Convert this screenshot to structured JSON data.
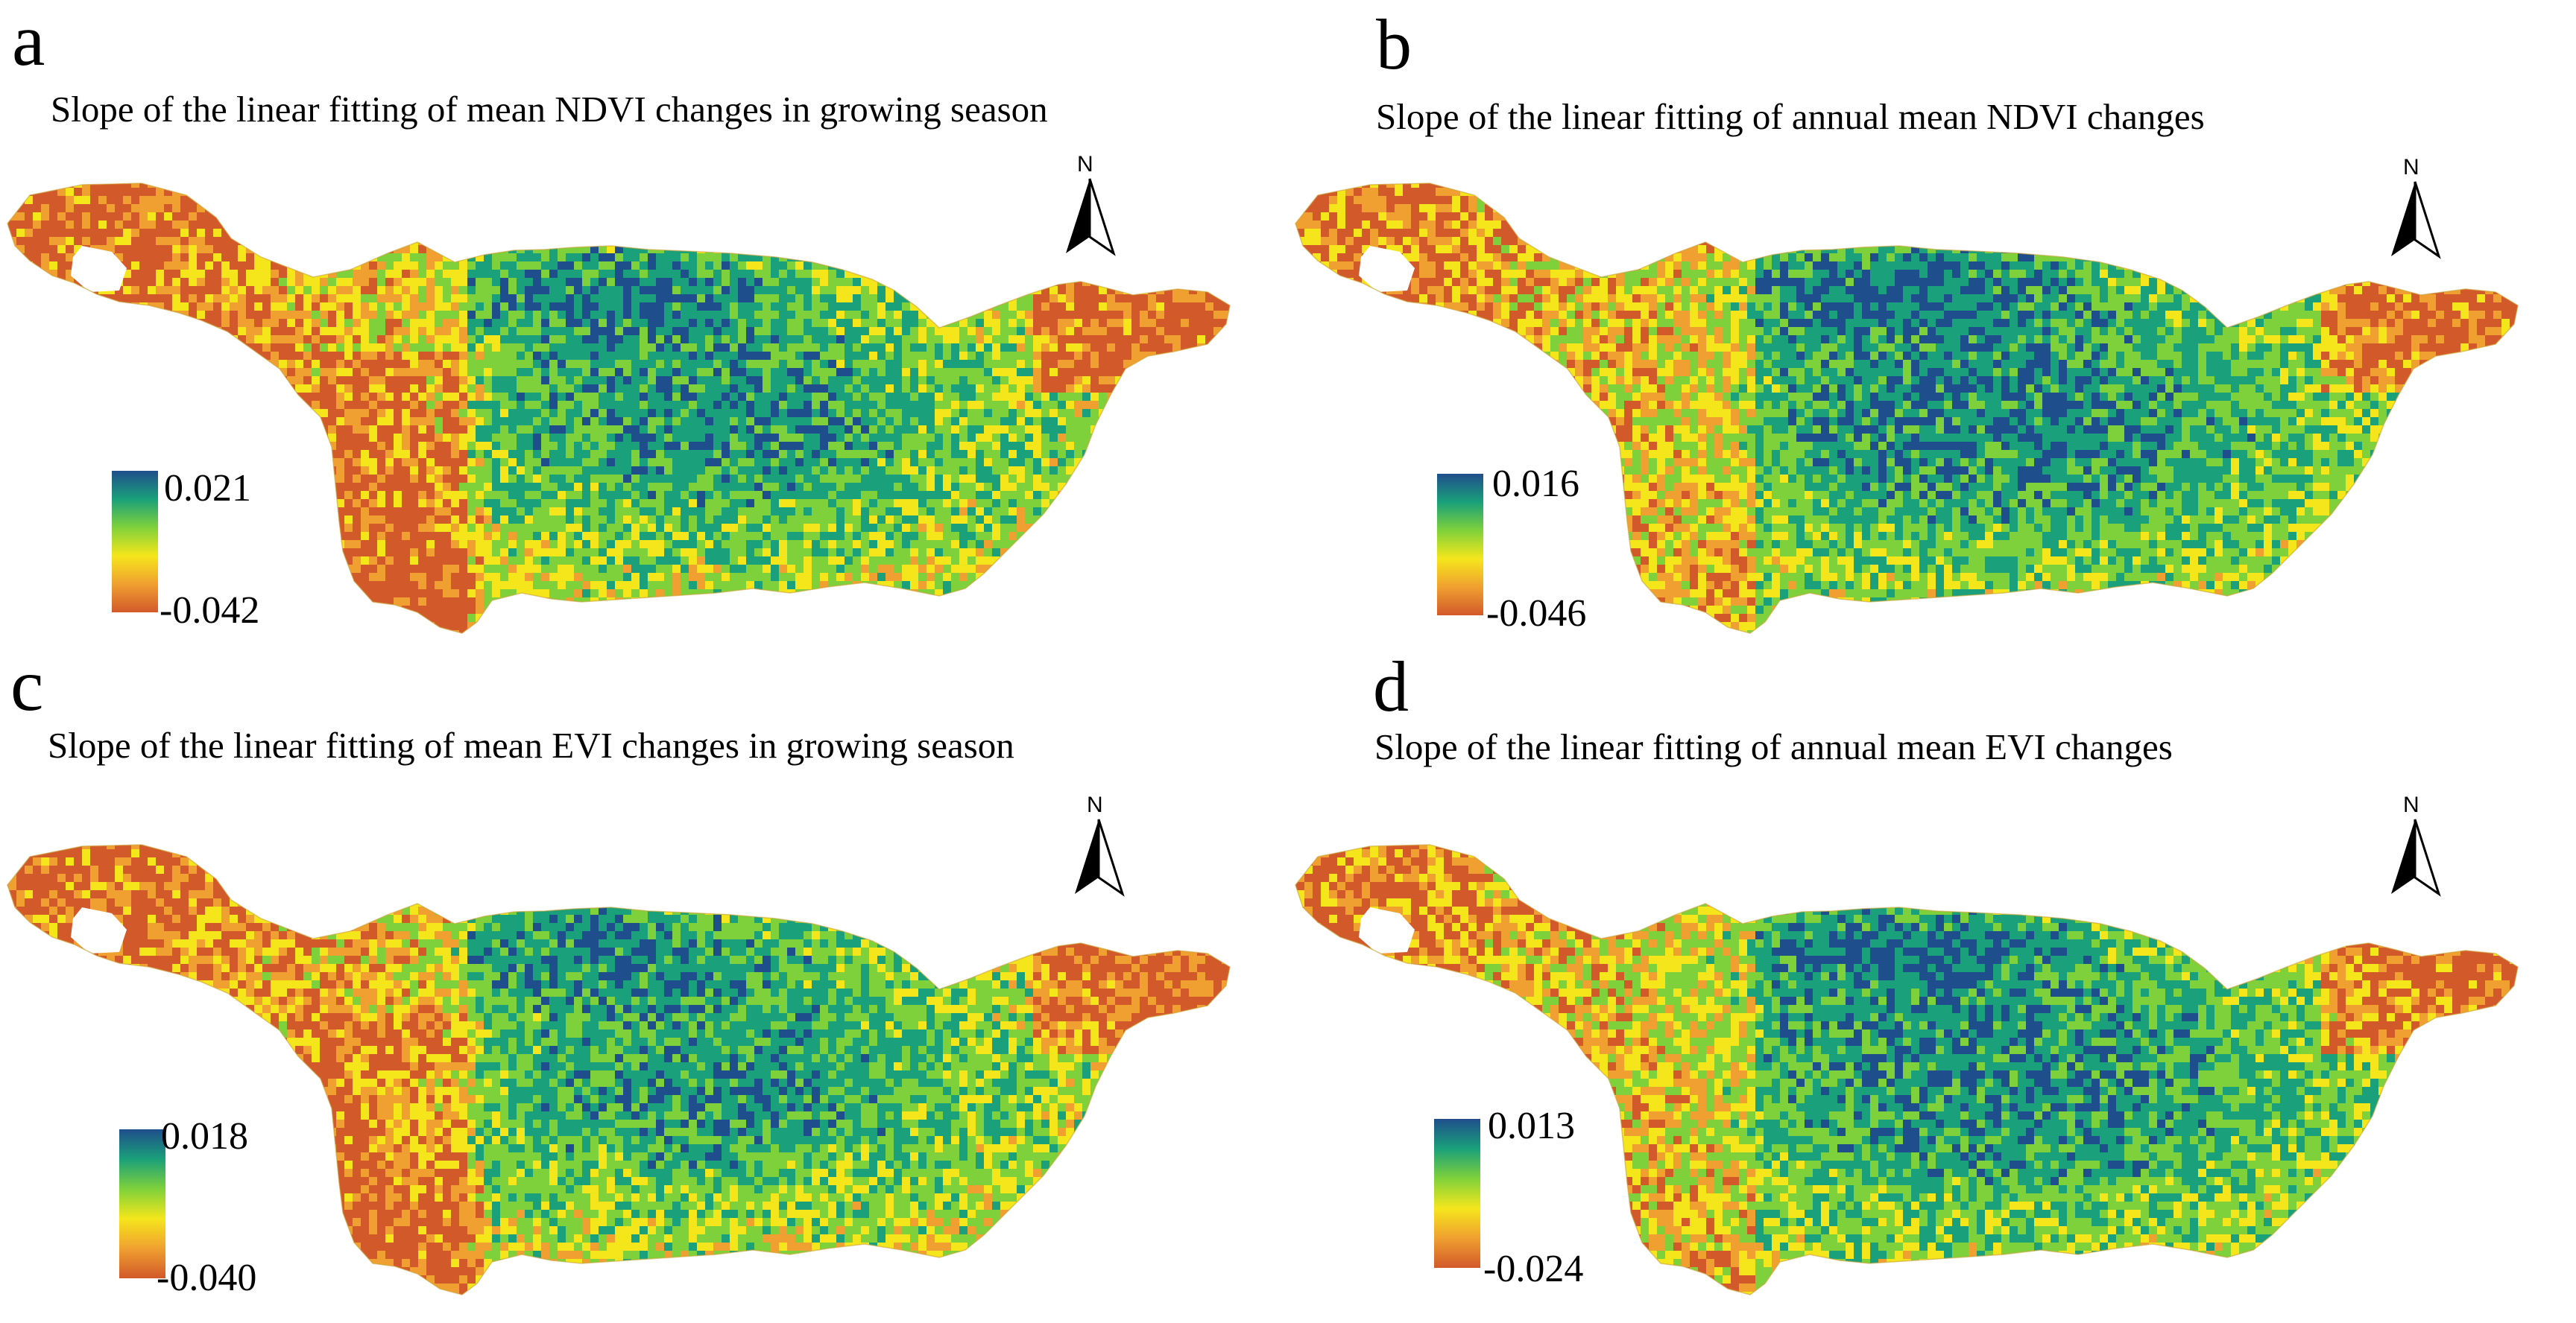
{
  "panels": [
    {
      "letter": "a",
      "title": "Slope of the linear fitting of mean NDVI changes in growing season",
      "legend": {
        "max": "0.021",
        "min": "-0.042"
      },
      "north": "N",
      "colors": [
        "#1f4e8c",
        "#1aa07a",
        "#7fd13b",
        "#f5e61c",
        "#f0a030",
        "#d2592a"
      ]
    },
    {
      "letter": "b",
      "title": "Slope of the linear fitting of annual mean NDVI changes",
      "legend": {
        "max": "0.016",
        "min": "-0.046"
      },
      "north": "N",
      "colors": [
        "#1f4e8c",
        "#1aa07a",
        "#7fd13b",
        "#f5e61c",
        "#f0a030",
        "#d2592a"
      ]
    },
    {
      "letter": "c",
      "title": "Slope of the linear fitting of mean EVI changes in growing season",
      "legend": {
        "max": "0.018",
        "min": "-0.040"
      },
      "north": "N",
      "colors": [
        "#1f4e8c",
        "#1aa07a",
        "#7fd13b",
        "#f5e61c",
        "#f0a030",
        "#d2592a"
      ]
    },
    {
      "letter": "d",
      "title": "Slope of the linear fitting of annual mean EVI changes",
      "legend": {
        "max": "0.013",
        "min": "-0.024"
      },
      "north": "N",
      "colors": [
        "#1f4e8c",
        "#1aa07a",
        "#7fd13b",
        "#f5e61c",
        "#f0a030",
        "#d2592a"
      ]
    }
  ]
}
